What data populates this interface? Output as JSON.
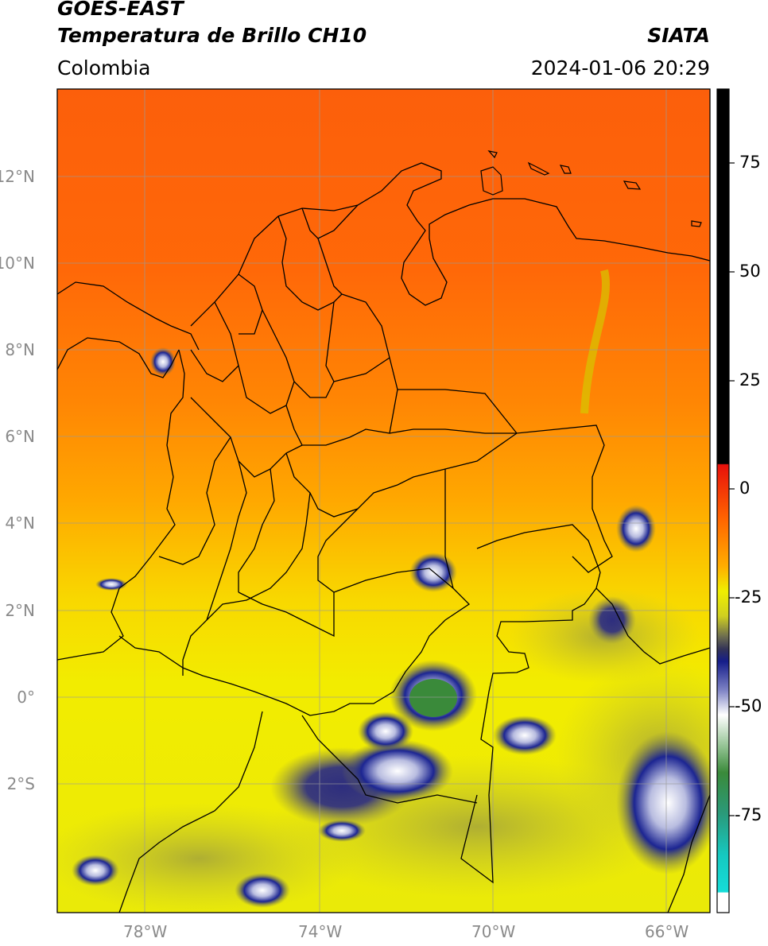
{
  "header": {
    "satellite": "GOES-EAST",
    "product": "Temperatura de Brillo CH10",
    "region": "Colombia",
    "agency": "SIATA",
    "datetime": "2024-01-06 20:29"
  },
  "map": {
    "lon_range": [
      -80,
      -65
    ],
    "lat_range": [
      -5,
      14
    ],
    "lon_ticks": [
      "78°W",
      "74°W",
      "70°W",
      "66°W"
    ],
    "lat_ticks": [
      "12°N",
      "10°N",
      "8°N",
      "6°N",
      "4°N",
      "2°N",
      "0°",
      "2°S"
    ],
    "grid": true
  },
  "colorbar": {
    "range": [
      -95,
      90
    ],
    "ticks": [
      "75",
      "50",
      "25",
      "0",
      "-25",
      "-50",
      "-75"
    ],
    "colors": {
      "warm_top": "#000000",
      "red": "#e8100b",
      "orange": "#ff6a00",
      "yellow": "#f0ef00",
      "olive": "#8b8b3a",
      "dark_blue": "#151d8a",
      "white": "#ffffff",
      "green": "#3a8a3a",
      "cyan": "#16dcd8"
    }
  }
}
